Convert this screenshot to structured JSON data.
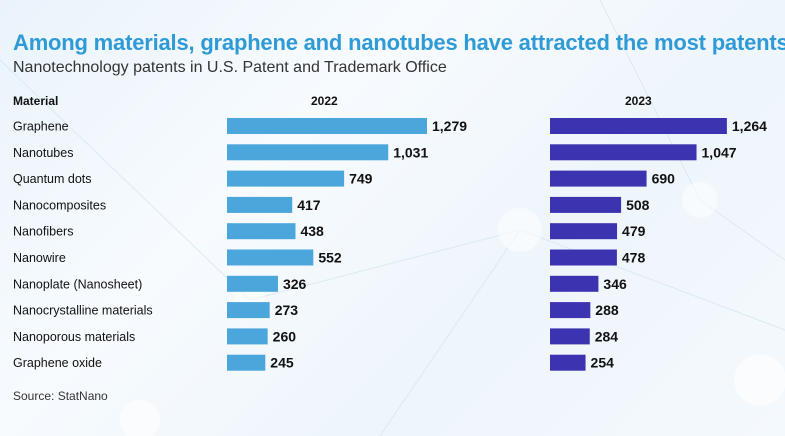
{
  "title": "Among materials, graphene and nanotubes have attracted the most patents",
  "subtitle": "Nanotechnology patents in U.S. Patent and Trademark Office",
  "headers": {
    "material": "Material",
    "y2022": "2022",
    "y2023": "2023"
  },
  "source": "Source: StatNano",
  "colors": {
    "title": "#2f9bd6",
    "bar2022": "#4ba6dc",
    "bar2023": "#3c33b0"
  },
  "chart_data": {
    "type": "bar",
    "orientation": "horizontal",
    "categories": [
      "Graphene",
      "Nanotubes",
      "Quantum dots",
      "Nanocomposites",
      "Nanofibers",
      "Nanowire",
      "Nanoplate (Nanosheet)",
      "Nanocrystalline materials",
      "Nanoporous materials",
      "Graphene oxide"
    ],
    "series": [
      {
        "name": "2022",
        "values": [
          1279,
          1031,
          749,
          417,
          438,
          552,
          326,
          273,
          260,
          245
        ],
        "labels": [
          "1,279",
          "1,031",
          "749",
          "417",
          "438",
          "552",
          "326",
          "273",
          "260",
          "245"
        ]
      },
      {
        "name": "2023",
        "values": [
          1264,
          1047,
          690,
          508,
          479,
          478,
          346,
          288,
          284,
          254
        ],
        "labels": [
          "1,264",
          "1,047",
          "690",
          "508",
          "479",
          "478",
          "346",
          "288",
          "284",
          "254"
        ]
      }
    ],
    "xlim": [
      0,
      1279
    ],
    "grid": false,
    "legend": "none"
  }
}
